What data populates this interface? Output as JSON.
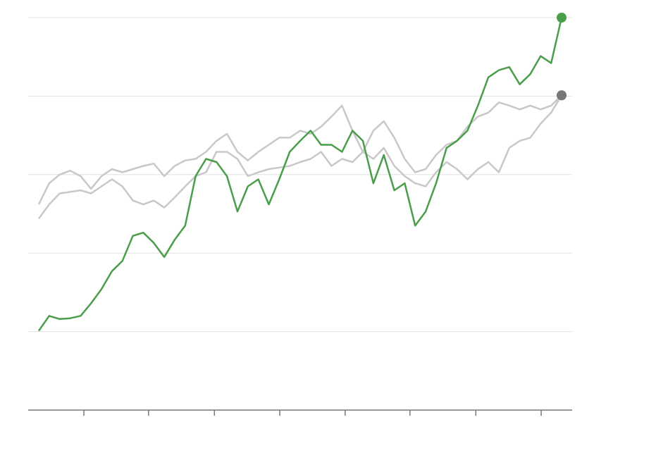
{
  "chart_data": {
    "type": "line",
    "x": [
      0,
      2,
      4,
      6,
      8,
      10,
      12,
      14,
      16,
      18,
      20,
      22,
      24,
      26,
      28,
      30,
      32,
      34,
      36,
      38,
      40,
      42,
      44,
      46,
      48,
      50,
      52,
      54,
      56,
      58,
      60,
      62,
      64,
      66,
      68,
      70,
      72,
      74,
      76,
      78,
      80,
      82,
      84,
      86,
      88,
      90,
      92,
      94,
      96,
      98,
      100
    ],
    "xlim": [
      -2.02,
      102.02
    ],
    "xticks": [
      8.63,
      21.0,
      33.6,
      46.1,
      58.6,
      71.0,
      83.6,
      96.1
    ],
    "ylim": [
      0,
      5
    ],
    "yticks": [
      1,
      2,
      3,
      4,
      5
    ],
    "grid": true,
    "series": [
      {
        "color": "#c8c8c8",
        "values": [
          2.62,
          2.89,
          3.0,
          3.05,
          2.98,
          2.82,
          2.98,
          3.07,
          3.03,
          3.07,
          3.11,
          3.14,
          2.98,
          3.11,
          3.18,
          3.2,
          3.29,
          3.43,
          3.52,
          3.29,
          3.18,
          3.29,
          3.38,
          3.47,
          3.47,
          3.56,
          3.52,
          3.61,
          3.74,
          3.88,
          3.56,
          3.29,
          3.56,
          3.68,
          3.47,
          3.2,
          3.03,
          3.07,
          3.25,
          3.38,
          3.43,
          3.61,
          3.74,
          3.79,
          3.92,
          3.88,
          3.83,
          3.88,
          3.83,
          3.88,
          4.01
        ]
      },
      {
        "color": "#c8c8c8",
        "values": [
          2.44,
          2.62,
          2.76,
          2.78,
          2.8,
          2.76,
          2.85,
          2.94,
          2.85,
          2.67,
          2.62,
          2.67,
          2.58,
          2.71,
          2.85,
          2.98,
          3.03,
          3.29,
          3.29,
          3.2,
          2.98,
          3.03,
          3.07,
          3.09,
          3.11,
          3.16,
          3.2,
          3.29,
          3.11,
          3.2,
          3.16,
          3.29,
          3.2,
          3.34,
          3.11,
          2.98,
          2.89,
          2.85,
          3.03,
          3.16,
          3.07,
          2.94,
          3.07,
          3.16,
          3.03,
          3.34,
          3.43,
          3.47,
          3.65,
          3.79,
          4.01
        ]
      },
      {
        "color": "#4a9e4a",
        "values": [
          1.01,
          1.2,
          1.16,
          1.17,
          1.2,
          1.36,
          1.54,
          1.77,
          1.9,
          2.22,
          2.26,
          2.13,
          1.95,
          2.17,
          2.35,
          2.98,
          3.2,
          3.16,
          2.98,
          2.53,
          2.85,
          2.94,
          2.62,
          2.94,
          3.29,
          3.43,
          3.56,
          3.38,
          3.38,
          3.29,
          3.56,
          3.43,
          2.89,
          3.25,
          2.8,
          2.89,
          2.35,
          2.53,
          2.89,
          3.34,
          3.43,
          3.56,
          3.88,
          4.24,
          4.33,
          4.37,
          4.15,
          4.28,
          4.51,
          4.42,
          5.0
        ]
      }
    ],
    "end_dot_colors": [
      "#777777",
      "#777777",
      "#4a9e4a"
    ]
  }
}
